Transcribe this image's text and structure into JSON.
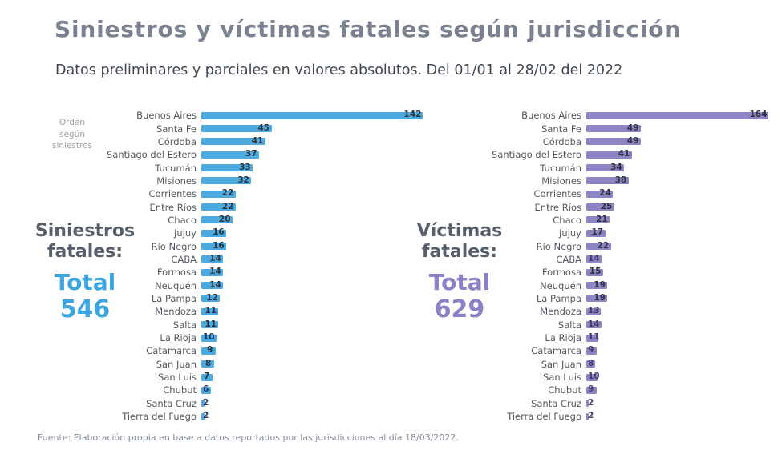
{
  "header": {
    "title": "Siniestros y víctimas fatales según jurisdicción",
    "subtitle": "Datos preliminares y parciales en valores absolutos. Del 01/01 al 28/02 del 2022"
  },
  "order_note": {
    "text": "Orden\nsegún\nsiniestros"
  },
  "summaries": {
    "siniestros": {
      "label": "Siniestros\nfatales:",
      "total_word": "Total",
      "total_value": "546"
    },
    "victimas": {
      "label": "Víctimas\nfatales:",
      "total_word": "Total",
      "total_value": "629"
    }
  },
  "footer": {
    "source": "Fuente: Elaboración propia en base a datos reportados por las jurisdicciones al día 18/03/2022."
  },
  "colors": {
    "title": "#7A8292",
    "subtitle": "#3E4650",
    "siniestros_accent": "#3BA6E0",
    "victimas_accent": "#8B81C6",
    "siniestros_bar": "#4BAADF",
    "victimas_bar": "#8D85C3",
    "category_label": "#54585F",
    "value_label": "#2B3440",
    "siniestros_small_value": "#1D3A5F",
    "victimas_small_value": "#433C6B",
    "order_note": "#9AA1A9",
    "footer": "#878E98"
  },
  "chart_data": [
    {
      "type": "bar",
      "orientation": "horizontal",
      "title": "Siniestros fatales",
      "total": 546,
      "legend_position": "none",
      "grid": false,
      "sort_note": "orden según siniestros",
      "bar_color": "#4BAADF",
      "small_value_color": "#1D3A5F",
      "categories": [
        "Buenos Aires",
        "Santa Fe",
        "Córdoba",
        "Santiago del Estero",
        "Tucumán",
        "Misiones",
        "Corrientes",
        "Entre Ríos",
        "Chaco",
        "Jujuy",
        "Río Negro",
        "CABA",
        "Formosa",
        "Neuquén",
        "La Pampa",
        "Mendoza",
        "Salta",
        "La Rioja",
        "Catamarca",
        "San Juan",
        "San Luis",
        "Chubut",
        "Santa Cruz",
        "Tierra del Fuego"
      ],
      "values": [
        142,
        45,
        41,
        37,
        33,
        32,
        22,
        22,
        20,
        16,
        16,
        14,
        14,
        14,
        12,
        11,
        11,
        10,
        9,
        8,
        7,
        6,
        2,
        2
      ]
    },
    {
      "type": "bar",
      "orientation": "horizontal",
      "title": "Víctimas fatales",
      "total": 629,
      "legend_position": "none",
      "grid": false,
      "sort_note": "orden según siniestros",
      "bar_color": "#8D85C3",
      "small_value_color": "#433C6B",
      "categories": [
        "Buenos Aires",
        "Santa Fe",
        "Córdoba",
        "Santiago del Estero",
        "Tucumán",
        "Misiones",
        "Corrientes",
        "Entre Ríos",
        "Chaco",
        "Jujuy",
        "Río Negro",
        "CABA",
        "Formosa",
        "Neuquén",
        "La Pampa",
        "Mendoza",
        "Salta",
        "La Rioja",
        "Catamarca",
        "San Juan",
        "San Luis",
        "Chubut",
        "Santa Cruz",
        "Tierra del Fuego"
      ],
      "values": [
        164,
        49,
        49,
        41,
        34,
        38,
        24,
        25,
        21,
        17,
        22,
        14,
        15,
        19,
        19,
        13,
        14,
        11,
        9,
        8,
        10,
        9,
        2,
        2
      ]
    }
  ]
}
